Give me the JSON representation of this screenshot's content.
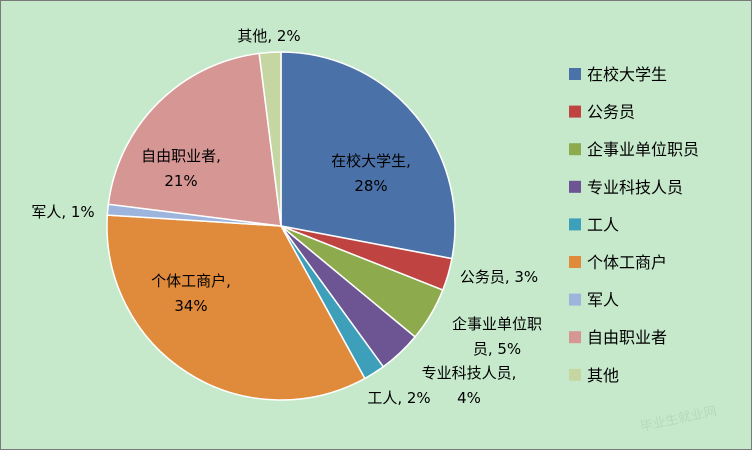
{
  "chart_data": {
    "type": "pie",
    "title": "",
    "slices": [
      {
        "label": "在校大学生",
        "value": 28,
        "color": "#4a72a8",
        "data_label": [
          "在校大学生,",
          "28%"
        ]
      },
      {
        "label": "公务员",
        "value": 3,
        "color": "#bf4441",
        "data_label": [
          "公务员, 3%"
        ]
      },
      {
        "label": "企事业单位职员",
        "value": 5,
        "color": "#8dab4c",
        "data_label": [
          "企事业单位职",
          "员, 5%"
        ]
      },
      {
        "label": "专业科技人员",
        "value": 4,
        "color": "#6d5492",
        "data_label": [
          "专业科技人员,",
          "4%"
        ]
      },
      {
        "label": "工人",
        "value": 2,
        "color": "#3e9fba",
        "data_label": [
          "工人, 2%"
        ]
      },
      {
        "label": "个体工商户",
        "value": 34,
        "color": "#e08a3c",
        "data_label": [
          "个体工商户,",
          "34%"
        ]
      },
      {
        "label": "军人",
        "value": 1,
        "color": "#9db5dd",
        "data_label": [
          "军人, 1%"
        ]
      },
      {
        "label": "自由职业者",
        "value": 21,
        "color": "#d69694",
        "data_label": [
          "自由职业者,",
          "21%"
        ]
      },
      {
        "label": "其他",
        "value": 2,
        "color": "#c5d6a2",
        "data_label": [
          "其他, 2%"
        ]
      }
    ],
    "legend_position": "right",
    "start_angle_deg": 0,
    "direction": "clockwise"
  },
  "watermark": "毕业生就业网"
}
